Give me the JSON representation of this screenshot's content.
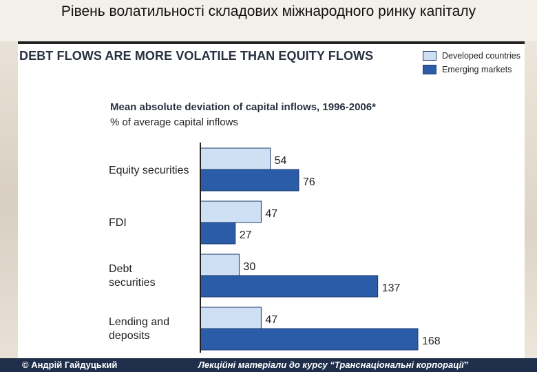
{
  "page": {
    "title": "Рівень волатильності складових міжнародного ринку капіталу"
  },
  "footer": {
    "author": "© Андрій Гайдуцький",
    "course": "Лекційні матеріали до курсу “Транснаціональні корпорації”"
  },
  "colors": {
    "developed": "#cfe0f5",
    "emerging": "#2a5ca8",
    "bar_border": "#1e3a6e",
    "axis": "#222222",
    "footer_bg": "#1f2e4b"
  },
  "chart_data": {
    "type": "bar",
    "orientation": "horizontal",
    "headline": "DEBT FLOWS ARE MORE VOLATILE THAN EQUITY FLOWS",
    "title": "Mean absolute deviation of capital inflows, 1996-2006*",
    "subtitle": "% of average capital inflows",
    "categories": [
      "Equity securities",
      "FDI",
      "Debt\nsecurities",
      "Lending and\ndeposits"
    ],
    "series": [
      {
        "name": "Developed countries",
        "values": [
          54,
          47,
          30,
          47
        ]
      },
      {
        "name": "Emerging markets",
        "values": [
          76,
          27,
          137,
          168
        ]
      }
    ],
    "xlim": [
      0,
      168
    ],
    "legend_position": "top-right",
    "grid": false,
    "data_labels": true
  }
}
